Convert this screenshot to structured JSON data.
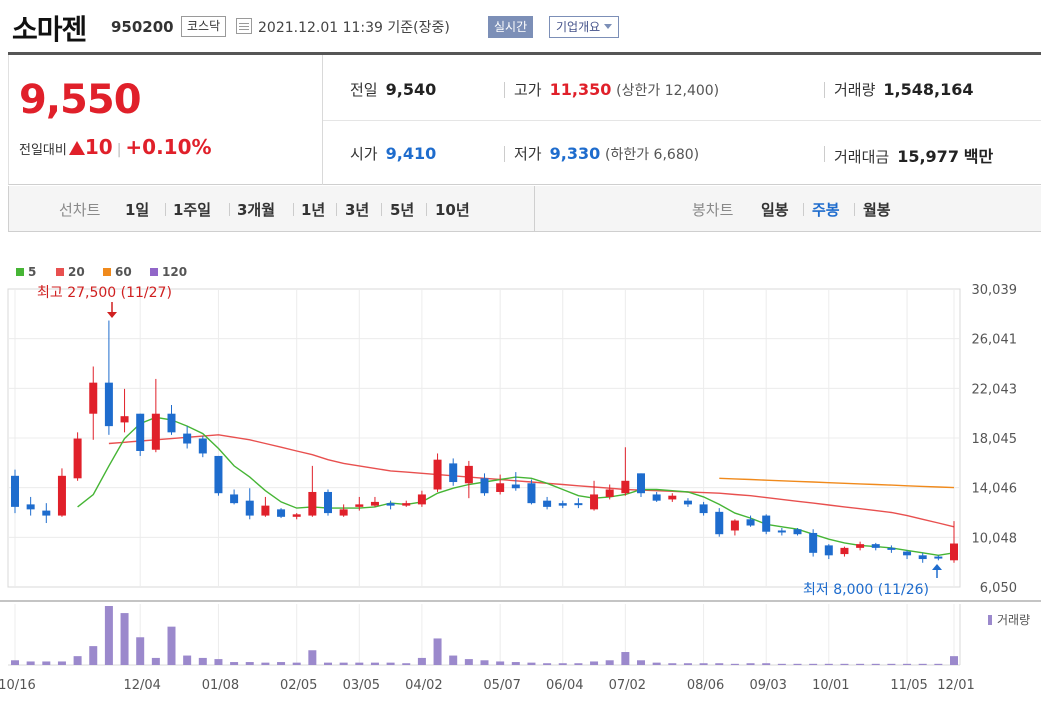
{
  "stock": {
    "name": "소마젠",
    "code": "950200",
    "market": "코스닥",
    "as_of": "2021.12.01 11:39 기준(장중)",
    "realtime_label": "실시간",
    "overview_label": "기업개요"
  },
  "quote": {
    "price": "9,550",
    "change_label": "전일대비",
    "change_amount": "10",
    "change_pct": "+0.10%",
    "prev_close_label": "전일",
    "prev_close": "9,540",
    "high_label": "고가",
    "high": "11,350",
    "upper_limit": "(상한가 12,400)",
    "volume_label": "거래량",
    "volume": "1,548,164",
    "open_label": "시가",
    "open": "9,410",
    "low_label": "저가",
    "low": "9,330",
    "lower_limit": "(하한가 6,680)",
    "amount_label": "거래대금",
    "amount": "15,977",
    "amount_unit": "백만",
    "up_color": "#e0202a",
    "down_color": "#1e6ccd"
  },
  "period_tabs": {
    "label": "선차트",
    "items": [
      "1일",
      "1주일",
      "3개월",
      "1년",
      "3년",
      "5년",
      "10년"
    ]
  },
  "candle_tabs": {
    "label": "봉차트",
    "items": [
      "일봉",
      "주봉",
      "월봉"
    ],
    "selected": "주봉"
  },
  "chart_data": {
    "type": "candlestick",
    "interval": "weekly",
    "legend": [
      {
        "name": "5",
        "color": "#46b535"
      },
      {
        "name": "20",
        "color": "#e8504f"
      },
      {
        "name": "60",
        "color": "#f08a1c"
      },
      {
        "name": "120",
        "color": "#9166c8"
      }
    ],
    "y_ticks": [
      "30,039",
      "26,041",
      "22,043",
      "18,045",
      "14,046",
      "10,048",
      "6,050"
    ],
    "ylim": [
      6050,
      30039
    ],
    "x_labels": [
      "10/16",
      "12/04",
      "01/08",
      "02/05",
      "03/05",
      "04/02",
      "05/07",
      "06/04",
      "07/02",
      "08/06",
      "09/03",
      "10/01",
      "11/05",
      "12/01"
    ],
    "high_annotation": "최고 27,500 (11/27)",
    "low_annotation": "최저 8,000 (11/26)",
    "volume_label": "거래량",
    "candles": [
      {
        "o": 15000,
        "c": 12500,
        "h": 15500,
        "l": 12000
      },
      {
        "o": 12700,
        "c": 12300,
        "h": 13300,
        "l": 11800
      },
      {
        "o": 12200,
        "c": 11800,
        "h": 12800,
        "l": 11200
      },
      {
        "o": 11800,
        "c": 15000,
        "h": 15600,
        "l": 11700
      },
      {
        "o": 14800,
        "c": 18000,
        "h": 18500,
        "l": 14600
      },
      {
        "o": 20000,
        "c": 22500,
        "h": 23800,
        "l": 17900
      },
      {
        "o": 22500,
        "c": 19000,
        "h": 27500,
        "l": 18300
      },
      {
        "o": 19300,
        "c": 19800,
        "h": 22000,
        "l": 18500
      },
      {
        "o": 20000,
        "c": 17000,
        "h": 20000,
        "l": 16600
      },
      {
        "o": 17100,
        "c": 20000,
        "h": 22800,
        "l": 16900
      },
      {
        "o": 20000,
        "c": 18500,
        "h": 20700,
        "l": 18300
      },
      {
        "o": 18400,
        "c": 17600,
        "h": 19000,
        "l": 17200
      },
      {
        "o": 18000,
        "c": 16800,
        "h": 18200,
        "l": 16500
      },
      {
        "o": 16600,
        "c": 13600,
        "h": 16600,
        "l": 13400
      },
      {
        "o": 13500,
        "c": 12800,
        "h": 13900,
        "l": 12700
      },
      {
        "o": 13000,
        "c": 11800,
        "h": 14000,
        "l": 11500
      },
      {
        "o": 11800,
        "c": 12600,
        "h": 13300,
        "l": 11700
      },
      {
        "o": 12300,
        "c": 11700,
        "h": 12400,
        "l": 11600
      },
      {
        "o": 11700,
        "c": 11900,
        "h": 12000,
        "l": 11500
      },
      {
        "o": 11800,
        "c": 13700,
        "h": 15800,
        "l": 11700
      },
      {
        "o": 13700,
        "c": 12000,
        "h": 13900,
        "l": 11800
      },
      {
        "o": 11800,
        "c": 12300,
        "h": 12700,
        "l": 11700
      },
      {
        "o": 12500,
        "c": 12700,
        "h": 13300,
        "l": 12200
      },
      {
        "o": 12600,
        "c": 12900,
        "h": 13300,
        "l": 12500
      },
      {
        "o": 12800,
        "c": 12600,
        "h": 13000,
        "l": 12300
      },
      {
        "o": 12600,
        "c": 12800,
        "h": 13000,
        "l": 12500
      },
      {
        "o": 12700,
        "c": 13500,
        "h": 13800,
        "l": 12500
      },
      {
        "o": 13900,
        "c": 16300,
        "h": 16800,
        "l": 13700
      },
      {
        "o": 16000,
        "c": 14500,
        "h": 16400,
        "l": 14200
      },
      {
        "o": 14400,
        "c": 15800,
        "h": 16200,
        "l": 13200
      },
      {
        "o": 14800,
        "c": 13600,
        "h": 15200,
        "l": 13400
      },
      {
        "o": 13700,
        "c": 14400,
        "h": 15100,
        "l": 13500
      },
      {
        "o": 14300,
        "c": 14000,
        "h": 15300,
        "l": 13800
      },
      {
        "o": 14400,
        "c": 12800,
        "h": 14700,
        "l": 12700
      },
      {
        "o": 13000,
        "c": 12500,
        "h": 13300,
        "l": 12300
      },
      {
        "o": 12800,
        "c": 12600,
        "h": 13000,
        "l": 12400
      },
      {
        "o": 12800,
        "c": 12700,
        "h": 13200,
        "l": 12400
      },
      {
        "o": 12300,
        "c": 13500,
        "h": 14600,
        "l": 12200
      },
      {
        "o": 13300,
        "c": 13900,
        "h": 14300,
        "l": 13100
      },
      {
        "o": 13600,
        "c": 14600,
        "h": 17300,
        "l": 13400
      },
      {
        "o": 15200,
        "c": 13600,
        "h": 15200,
        "l": 13300
      },
      {
        "o": 13500,
        "c": 13000,
        "h": 13700,
        "l": 12900
      },
      {
        "o": 13100,
        "c": 13400,
        "h": 13600,
        "l": 12900
      },
      {
        "o": 13000,
        "c": 12700,
        "h": 13200,
        "l": 12500
      },
      {
        "o": 12700,
        "c": 12000,
        "h": 12900,
        "l": 11800
      },
      {
        "o": 12100,
        "c": 10300,
        "h": 12400,
        "l": 10100
      },
      {
        "o": 10600,
        "c": 11400,
        "h": 11500,
        "l": 10200
      },
      {
        "o": 11500,
        "c": 11000,
        "h": 11800,
        "l": 10900
      },
      {
        "o": 11800,
        "c": 10500,
        "h": 11900,
        "l": 10300
      },
      {
        "o": 10600,
        "c": 10500,
        "h": 10800,
        "l": 10200
      },
      {
        "o": 10700,
        "c": 10300,
        "h": 10800,
        "l": 10200
      },
      {
        "o": 10400,
        "c": 8800,
        "h": 10700,
        "l": 8500
      },
      {
        "o": 9400,
        "c": 8600,
        "h": 9500,
        "l": 8300
      },
      {
        "o": 8700,
        "c": 9200,
        "h": 9300,
        "l": 8500
      },
      {
        "o": 9200,
        "c": 9500,
        "h": 9700,
        "l": 9000
      },
      {
        "o": 9500,
        "c": 9200,
        "h": 9600,
        "l": 9000
      },
      {
        "o": 9200,
        "c": 9100,
        "h": 9400,
        "l": 8800
      },
      {
        "o": 8900,
        "c": 8600,
        "h": 9000,
        "l": 8300
      },
      {
        "o": 8600,
        "c": 8300,
        "h": 8800,
        "l": 8000
      },
      {
        "o": 8500,
        "c": 8400,
        "h": 8600,
        "l": 8200
      },
      {
        "o": 8200,
        "c": 9550,
        "h": 11350,
        "l": 8000
      }
    ],
    "volumes": [
      0.08,
      0.06,
      0.06,
      0.06,
      0.15,
      0.32,
      1.0,
      0.88,
      0.47,
      0.12,
      0.65,
      0.16,
      0.12,
      0.1,
      0.05,
      0.05,
      0.04,
      0.05,
      0.04,
      0.25,
      0.04,
      0.04,
      0.04,
      0.04,
      0.04,
      0.03,
      0.12,
      0.45,
      0.16,
      0.1,
      0.08,
      0.06,
      0.05,
      0.04,
      0.03,
      0.03,
      0.03,
      0.06,
      0.08,
      0.22,
      0.08,
      0.04,
      0.03,
      0.03,
      0.03,
      0.03,
      0.02,
      0.03,
      0.03,
      0.02,
      0.02,
      0.02,
      0.02,
      0.02,
      0.02,
      0.02,
      0.02,
      0.02,
      0.02,
      0.02,
      0.15
    ],
    "ma5": [
      null,
      null,
      null,
      null,
      12500,
      13500,
      15800,
      18000,
      19200,
      19700,
      19500,
      19000,
      18400,
      17200,
      15800,
      14900,
      13800,
      12900,
      12400,
      12500,
      12400,
      12400,
      12400,
      12500,
      12800,
      12700,
      12900,
      13600,
      14000,
      14300,
      14500,
      14700,
      14900,
      14800,
      14400,
      13900,
      13400,
      13200,
      13300,
      13500,
      13900,
      13900,
      13800,
      13700,
      13300,
      12700,
      12000,
      11600,
      11100,
      10900,
      10700,
      10300,
      9900,
      9600,
      9400,
      9300,
      9200,
      9000,
      8800,
      8600,
      8800
    ],
    "ma20": {
      "start": 6,
      "values": [
        17600,
        17700,
        17800,
        17900,
        18000,
        18100,
        18200,
        18300,
        18100,
        17900,
        17600,
        17300,
        17000,
        16700,
        16300,
        16000,
        15800,
        15600,
        15400,
        15300,
        15200,
        15100,
        15000,
        14900,
        14800,
        14700,
        14600,
        14500,
        14400,
        14300,
        14200,
        14100,
        14000,
        13900,
        13850,
        13800,
        13750,
        13700,
        13650,
        13600,
        13500,
        13400,
        13250,
        13100,
        12950,
        12800,
        12650,
        12500,
        12350,
        12200,
        12050,
        11800,
        11500,
        11200,
        10900
      ]
    },
    "ma60": {
      "start": 45,
      "values": [
        14800,
        14750,
        14700,
        14650,
        14600,
        14550,
        14500,
        14450,
        14400,
        14350,
        14300,
        14250,
        14200,
        14150,
        14100,
        14050
      ]
    }
  }
}
